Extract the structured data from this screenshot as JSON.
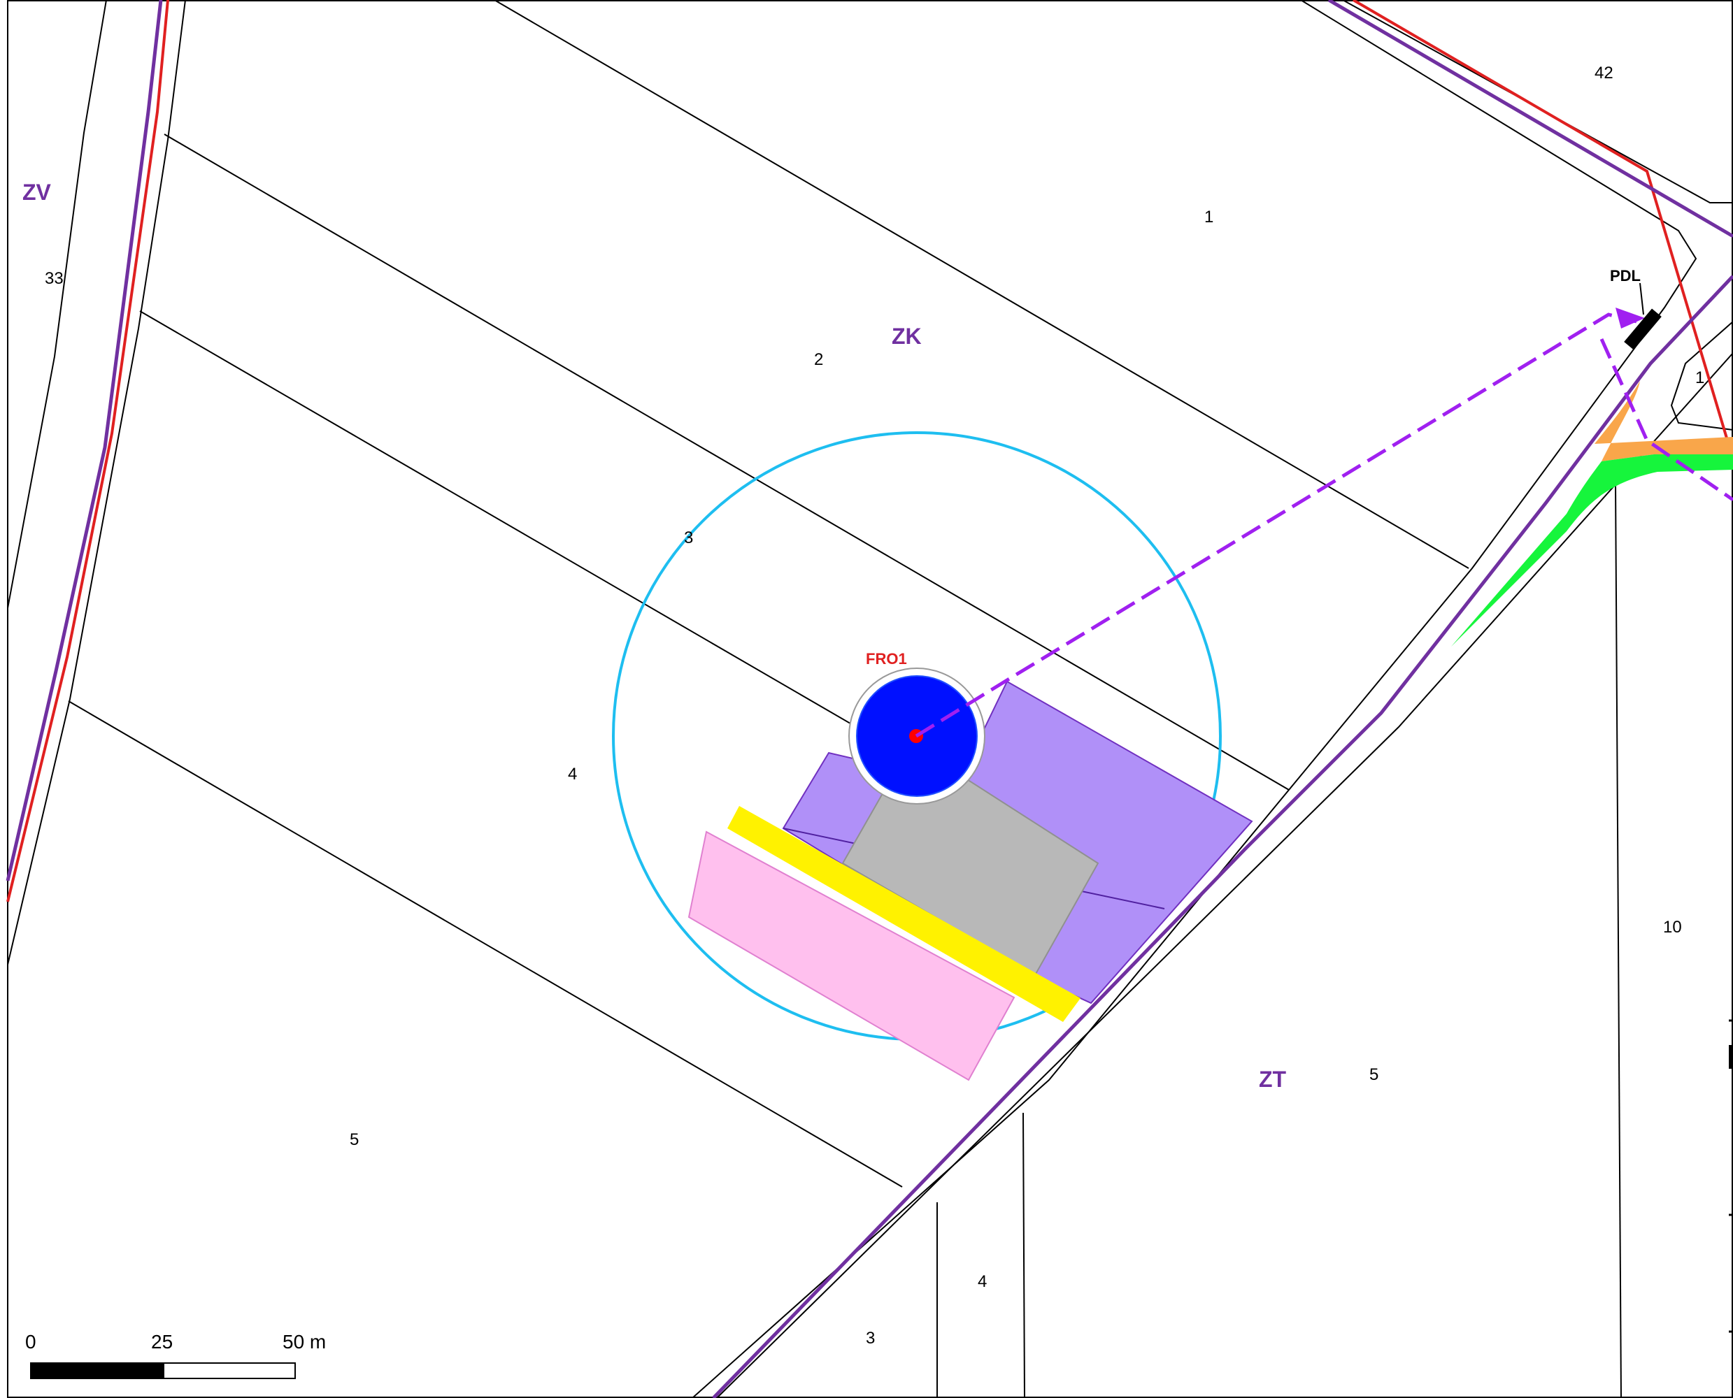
{
  "map": {
    "colors": {
      "zone_code": "#7030A0",
      "boundary_red": "#E02020",
      "cable_route": "#A020F0",
      "buffer_circle": "#1EBEF0",
      "turbine_fill": "#0010FF",
      "turbine_center": "#FF0000",
      "turbine_label": "#E02020",
      "crane_pad": "#B090F8",
      "foundation_area": "#B8B8B8",
      "storage_area": "#FFC0EE",
      "assembly_strip": "#FFF200",
      "access_orange": "#F9A64A",
      "access_green": "#16F53C"
    },
    "zones": [
      {
        "id": "zv",
        "code": "ZV"
      },
      {
        "id": "zk",
        "code": "ZK"
      },
      {
        "id": "zt",
        "code": "ZT"
      }
    ],
    "parcels": [
      {
        "id": "p42",
        "num": "42"
      },
      {
        "id": "p1a",
        "num": "1"
      },
      {
        "id": "p33",
        "num": "33"
      },
      {
        "id": "p2",
        "num": "2"
      },
      {
        "id": "p1b",
        "num": "1"
      },
      {
        "id": "p3a",
        "num": "3"
      },
      {
        "id": "p4a",
        "num": "4"
      },
      {
        "id": "p10",
        "num": "10"
      },
      {
        "id": "p5a",
        "num": "5"
      },
      {
        "id": "p5b",
        "num": "5"
      },
      {
        "id": "p4b",
        "num": "4"
      },
      {
        "id": "p3b",
        "num": "3"
      }
    ],
    "features": {
      "turbine": "FRO1",
      "substation": "PDL"
    },
    "scale_bar": {
      "labels": [
        "0",
        "25",
        "50 m"
      ]
    }
  }
}
